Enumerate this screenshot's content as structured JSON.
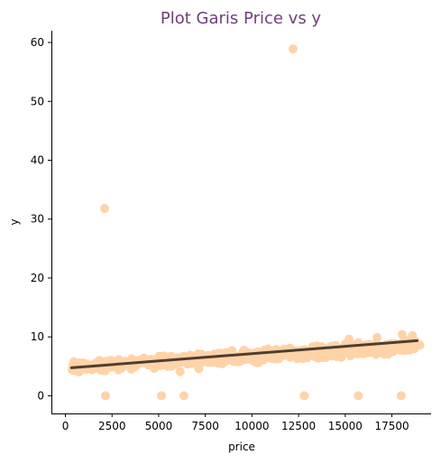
{
  "chart_data": {
    "type": "scatter",
    "title": "Plot Garis Price vs y",
    "xlabel": "price",
    "ylabel": "y",
    "xlim": [
      -750,
      19600
    ],
    "ylim": [
      -3,
      62
    ],
    "xticks": [
      0,
      2500,
      5000,
      7500,
      10000,
      12500,
      15000,
      17500
    ],
    "yticks": [
      0,
      10,
      20,
      30,
      40,
      50,
      60
    ],
    "grid": false,
    "legend": "none",
    "point_color": "#ffd3a8",
    "line_color": "#4d3e2f",
    "outliers": [
      {
        "x": 12200,
        "y": 58.9
      },
      {
        "x": 2100,
        "y": 31.8
      },
      {
        "x": 2150,
        "y": 0
      },
      {
        "x": 5150,
        "y": 0
      },
      {
        "x": 6350,
        "y": 0
      },
      {
        "x": 12800,
        "y": 0
      },
      {
        "x": 15700,
        "y": 0
      },
      {
        "x": 18000,
        "y": 0
      },
      {
        "x": 6150,
        "y": 4.1
      },
      {
        "x": 7150,
        "y": 4.6
      },
      {
        "x": 18050,
        "y": 10.4
      },
      {
        "x": 18600,
        "y": 10.2
      },
      {
        "x": 16700,
        "y": 9.9
      },
      {
        "x": 15200,
        "y": 9.6
      },
      {
        "x": 450,
        "y": 5.8
      },
      {
        "x": 19000,
        "y": 8.6
      }
    ],
    "cloud": {
      "x_range": [
        330,
        18900
      ],
      "y_lower": [
        3.6,
        7.0
      ],
      "y_upper": [
        6.0,
        10.0
      ]
    },
    "regression": {
      "x": [
        330,
        18850
      ],
      "y": [
        4.75,
        9.35
      ]
    }
  }
}
